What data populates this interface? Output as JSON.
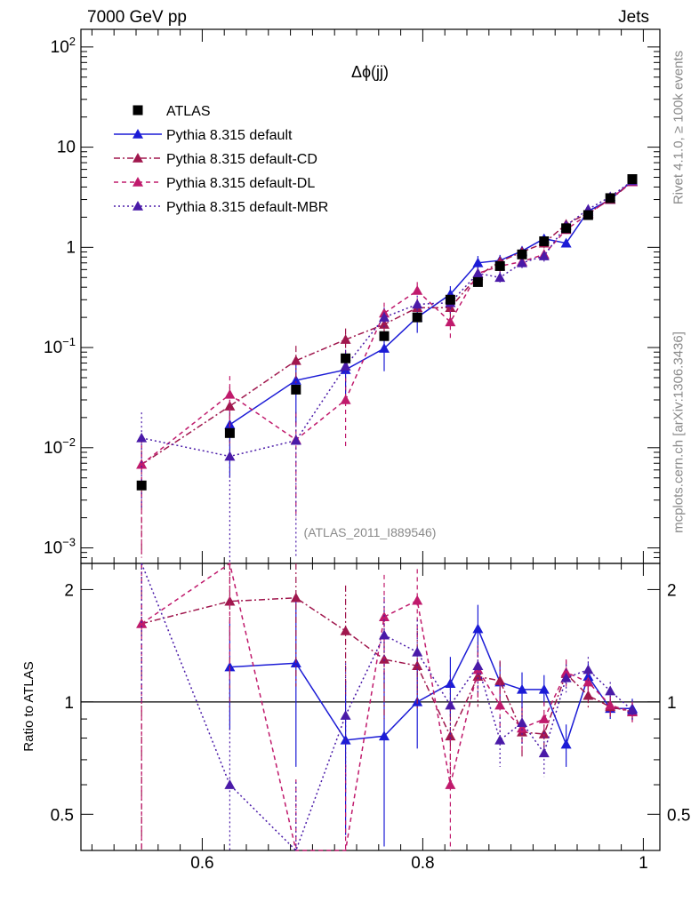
{
  "header": {
    "left_label": "7000 GeV pp",
    "right_label": "Jets"
  },
  "side_labels": {
    "rivet": "Rivet 4.1.0, ≥ 100k events",
    "mcplots": "mcplots.cern.ch [arXiv:1306.3436]"
  },
  "plot_title": "Δϕ(jj)",
  "analysis_tag": "(ATLAS_2011_I889546)",
  "chart_data": {
    "type": "line",
    "title": "Δϕ(jj)",
    "xlabel": "",
    "ylabel_main": "",
    "ylabel_ratio": "Ratio to ATLAS",
    "xlim": [
      0.49,
      1.015
    ],
    "ylim_main": [
      0.0007,
      150
    ],
    "ylim_ratio": [
      0.4,
      2.35
    ],
    "yscale": "log",
    "x_ticks": [
      "0.6",
      "0.8",
      "1"
    ],
    "y_ticks_main": [
      "10^-3",
      "10^-2",
      "10^-1",
      "1",
      "10",
      "10^2"
    ],
    "y_ticks_ratio": [
      "0.5",
      "1",
      "2"
    ],
    "x": [
      0.545,
      0.625,
      0.685,
      0.73,
      0.765,
      0.795,
      0.825,
      0.85,
      0.87,
      0.89,
      0.91,
      0.93,
      0.95,
      0.97,
      0.99
    ],
    "series": [
      {
        "name": "ATLAS",
        "color": "#000000",
        "marker": "square",
        "line": "none",
        "values": [
          0.0042,
          0.014,
          0.038,
          0.078,
          0.13,
          0.2,
          0.3,
          0.45,
          0.65,
          0.85,
          1.15,
          1.55,
          2.1,
          3.1,
          4.8
        ],
        "errors": [
          0.0004,
          0.0012,
          0.003,
          0.005,
          0.008,
          0.01,
          0.015,
          0.02,
          0.03,
          0.04,
          0.05,
          0.06,
          0.08,
          0.1,
          0.15
        ]
      },
      {
        "name": "Pythia 8.315 default",
        "color": "#1c1cd6",
        "marker": "triangle",
        "line": "solid",
        "values": [
          null,
          0.017,
          0.047,
          0.06,
          0.098,
          0.2,
          0.34,
          0.7,
          0.74,
          0.92,
          1.22,
          1.1,
          2.3,
          3.0,
          4.6
        ],
        "errors": [
          null,
          0.012,
          0.03,
          0.03,
          0.04,
          0.06,
          0.07,
          0.12,
          0.1,
          0.1,
          0.12,
          0.1,
          0.2,
          0.2,
          0.3
        ]
      },
      {
        "name": "Pythia 8.315 default-CD",
        "color": "#a0174d",
        "marker": "triangle",
        "line": "dashdot",
        "values": [
          0.0068,
          0.026,
          0.074,
          0.12,
          0.17,
          0.25,
          0.25,
          0.52,
          0.72,
          0.9,
          1.1,
          1.7,
          2.2,
          3.0,
          4.5
        ],
        "errors": [
          0.006,
          0.015,
          0.03,
          0.035,
          0.04,
          0.05,
          0.06,
          0.08,
          0.09,
          0.1,
          0.12,
          0.14,
          0.16,
          0.2,
          0.3
        ]
      },
      {
        "name": "Pythia 8.315 default-DL",
        "color": "#c01a6c",
        "marker": "triangle",
        "line": "dashed",
        "values": [
          0.0068,
          0.034,
          0.012,
          0.03,
          0.22,
          0.37,
          0.18,
          0.55,
          0.65,
          0.72,
          0.85,
          1.5,
          2.15,
          3.05,
          4.5
        ],
        "errors": [
          0.006,
          0.018,
          0.01,
          0.02,
          0.06,
          0.08,
          0.06,
          0.08,
          0.09,
          0.09,
          0.1,
          0.14,
          0.16,
          0.2,
          0.3
        ]
      },
      {
        "name": "Pythia 8.315 default-MBR",
        "color": "#4a1aa8",
        "marker": "triangle",
        "line": "dotted",
        "values": [
          0.0125,
          0.0082,
          0.0118,
          0.065,
          0.2,
          0.27,
          0.28,
          0.55,
          0.5,
          0.7,
          0.82,
          1.65,
          2.4,
          3.2,
          4.6
        ],
        "errors": [
          0.01,
          0.008,
          0.011,
          0.03,
          0.05,
          0.06,
          0.06,
          0.08,
          0.07,
          0.08,
          0.1,
          0.14,
          0.18,
          0.22,
          0.3
        ]
      }
    ],
    "ratios": [
      {
        "name": "Pythia 8.315 default",
        "values": [
          null,
          1.24,
          1.27,
          0.79,
          0.81,
          1.0,
          1.12,
          1.57,
          1.13,
          1.08,
          1.08,
          0.77,
          1.17,
          0.96,
          0.96
        ],
        "errors": [
          null,
          0.4,
          0.6,
          0.35,
          0.4,
          0.25,
          0.2,
          0.25,
          0.15,
          0.12,
          0.1,
          0.1,
          0.1,
          0.06,
          0.06
        ]
      },
      {
        "name": "Pythia 8.315 default-CD",
        "values": [
          1.62,
          1.86,
          1.9,
          1.55,
          1.3,
          1.25,
          0.81,
          1.17,
          1.14,
          0.83,
          0.82,
          1.19,
          1.04,
          0.97,
          0.94
        ],
        "errors": [
          1.5,
          0.9,
          0.8,
          0.5,
          0.4,
          0.3,
          0.2,
          0.2,
          0.15,
          0.12,
          0.1,
          0.1,
          0.08,
          0.06,
          0.06
        ]
      },
      {
        "name": "Pythia 8.315 default-DL",
        "values": [
          1.62,
          2.43,
          0.32,
          0.38,
          1.69,
          1.87,
          0.6,
          1.22,
          0.98,
          0.85,
          0.9,
          1.2,
          1.13,
          0.98,
          0.94
        ],
        "errors": [
          1.5,
          1.3,
          0.3,
          0.3,
          0.5,
          0.4,
          0.2,
          0.2,
          0.15,
          0.12,
          0.1,
          0.1,
          0.08,
          0.06,
          0.06
        ]
      },
      {
        "name": "Pythia 8.315 default-MBR",
        "values": [
          3.0,
          0.6,
          0.31,
          0.92,
          1.51,
          1.36,
          0.98,
          1.25,
          0.79,
          0.88,
          0.73,
          1.16,
          1.22,
          1.07,
          0.95
        ],
        "errors": [
          2.0,
          0.55,
          0.3,
          0.35,
          0.4,
          0.3,
          0.2,
          0.2,
          0.12,
          0.12,
          0.1,
          0.1,
          0.1,
          0.06,
          0.06
        ]
      }
    ]
  }
}
